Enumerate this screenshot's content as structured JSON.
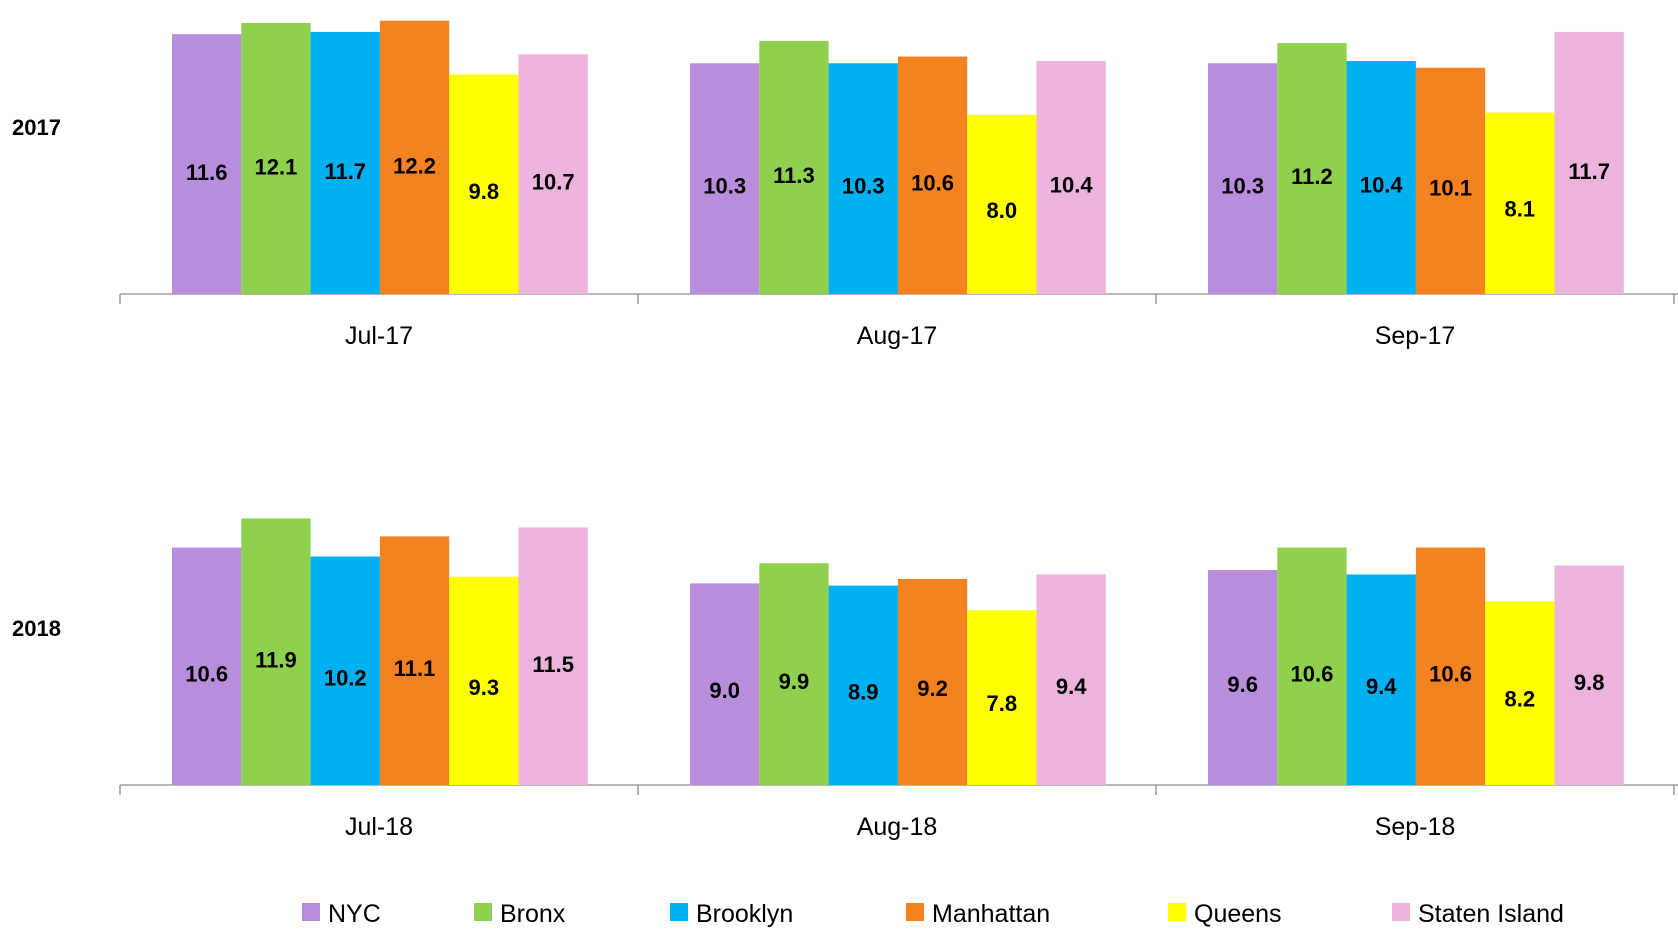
{
  "chart_data": {
    "type": "bar",
    "series": [
      {
        "name": "NYC",
        "color": "#b88ddc"
      },
      {
        "name": "Bronx",
        "color": "#8fd14f"
      },
      {
        "name": "Brooklyn",
        "color": "#00b0f0"
      },
      {
        "name": "Manhattan",
        "color": "#f58220"
      },
      {
        "name": "Queens",
        "color": "#ffff00"
      },
      {
        "name": "Staten Island",
        "color": "#ecb3dd"
      }
    ],
    "panels": [
      {
        "row_label": "2017",
        "categories": [
          "Jul-17",
          "Aug-17",
          "Sep-17"
        ],
        "values": [
          [
            11.6,
            12.1,
            11.7,
            12.2,
            9.8,
            10.7
          ],
          [
            10.3,
            11.3,
            10.3,
            10.6,
            8.0,
            10.4
          ],
          [
            10.3,
            11.2,
            10.4,
            10.1,
            8.1,
            11.7
          ]
        ]
      },
      {
        "row_label": "2018",
        "categories": [
          "Jul-18",
          "Aug-18",
          "Sep-18"
        ],
        "values": [
          [
            10.6,
            11.9,
            10.2,
            11.1,
            9.3,
            11.5
          ],
          [
            9.0,
            9.9,
            8.9,
            9.2,
            7.8,
            9.4
          ],
          [
            9.6,
            10.6,
            9.4,
            10.6,
            8.2,
            9.8
          ]
        ]
      }
    ],
    "legend_position": "bottom",
    "grid": false
  }
}
